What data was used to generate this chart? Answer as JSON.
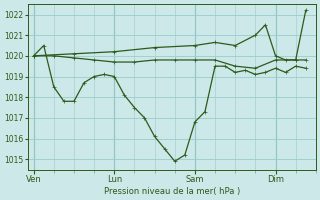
{
  "bg_color": "#cce8e8",
  "grid_color": "#99cccc",
  "line_color_dark": "#2d5a1b",
  "xlabel": "Pression niveau de la mer( hPa )",
  "ylim": [
    1014.5,
    1022.5
  ],
  "yticks": [
    1015,
    1016,
    1017,
    1018,
    1019,
    1020,
    1021,
    1022
  ],
  "xtick_labels": [
    "Ven",
    "Lun",
    "Sam",
    "Dim"
  ],
  "xtick_positions": [
    0,
    4,
    8,
    12
  ],
  "xmax": 14,
  "vline_positions": [
    0,
    4,
    8,
    12
  ],
  "vline_color": "#7aaaaa",
  "series1_x": [
    0,
    0.5,
    1.0,
    1.5,
    2.0,
    2.5,
    3.0,
    3.5,
    4.0,
    4.5,
    5.0,
    5.5,
    6.0,
    6.5,
    7.0,
    7.5,
    8.0,
    8.5,
    9.0,
    9.5,
    10.0,
    10.5,
    11.0,
    11.5,
    12.0,
    12.5,
    13.0,
    13.5
  ],
  "series1_y": [
    1020.0,
    1020.5,
    1018.5,
    1017.8,
    1017.8,
    1018.7,
    1019.0,
    1019.1,
    1019.0,
    1018.1,
    1017.5,
    1017.0,
    1016.1,
    1015.5,
    1014.9,
    1015.2,
    1016.8,
    1017.3,
    1019.5,
    1019.5,
    1019.2,
    1019.3,
    1019.1,
    1019.2,
    1019.4,
    1019.2,
    1019.5,
    1019.4
  ],
  "series2_x": [
    0,
    1.0,
    2.0,
    3.0,
    4.0,
    5.0,
    6.0,
    7.0,
    8.0,
    9.0,
    10.0,
    11.0,
    12.0,
    13.0,
    13.5
  ],
  "series2_y": [
    1020.0,
    1020.0,
    1019.9,
    1019.8,
    1019.7,
    1019.7,
    1019.8,
    1019.8,
    1019.8,
    1019.8,
    1019.5,
    1019.4,
    1019.8,
    1019.8,
    1019.8
  ],
  "series3_x": [
    0,
    2.0,
    4.0,
    6.0,
    8.0,
    9.0,
    10.0,
    11.0,
    11.5,
    12.0,
    12.5,
    13.0,
    13.5
  ],
  "series3_y": [
    1020.0,
    1020.1,
    1020.2,
    1020.4,
    1020.5,
    1020.65,
    1020.5,
    1021.0,
    1021.5,
    1020.0,
    1019.8,
    1019.8,
    1022.2
  ]
}
